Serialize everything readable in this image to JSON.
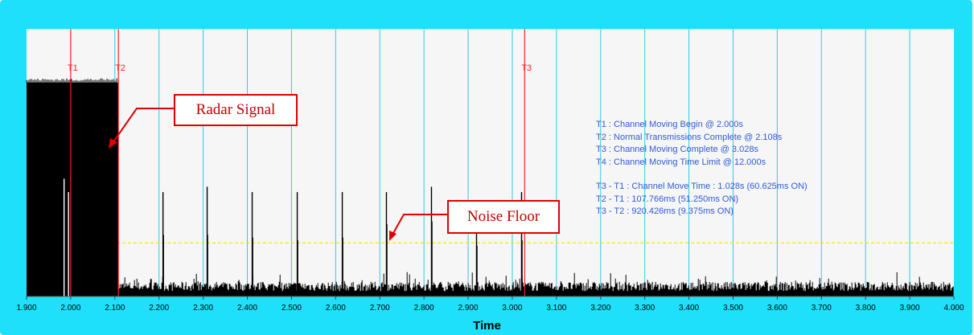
{
  "chart_data": {
    "type": "line",
    "xlabel": "Time",
    "ylabel": "",
    "xlim": [
      1.9,
      4.0
    ],
    "x_ticks": [
      "1.900",
      "2.000",
      "2.100",
      "2.200",
      "2.300",
      "2.400",
      "2.500",
      "2.600",
      "2.700",
      "2.800",
      "2.900",
      "3.000",
      "3.100",
      "3.200",
      "3.300",
      "3.400",
      "3.500",
      "3.600",
      "3.700",
      "3.800",
      "3.900",
      "4.000"
    ],
    "grid_lines_x": [
      2.0,
      2.1,
      2.2,
      2.3,
      2.4,
      2.5,
      2.6,
      2.7,
      2.8,
      2.9,
      3.0,
      3.1,
      3.2,
      3.3,
      3.4,
      3.5,
      3.6,
      3.7,
      3.8,
      3.9
    ],
    "markers": [
      {
        "label": "T1",
        "x": 2.0
      },
      {
        "label": "T2",
        "x": 2.108
      },
      {
        "label": "T3",
        "x": 3.028
      }
    ],
    "threshold": {
      "relative_level": 0.2
    },
    "radar_burst": {
      "x_start": 1.9,
      "x_end": 2.108,
      "relative_level": 0.8
    },
    "spikes": [
      {
        "x": 1.985,
        "relative_level": 0.44
      },
      {
        "x": 1.995,
        "relative_level": 0.39
      },
      {
        "x": 2.209,
        "relative_level": 0.39
      },
      {
        "x": 2.21,
        "relative_level": 0.23
      },
      {
        "x": 2.309,
        "relative_level": 0.41
      },
      {
        "x": 2.31,
        "relative_level": 0.23
      },
      {
        "x": 2.411,
        "relative_level": 0.39
      },
      {
        "x": 2.412,
        "relative_level": 0.22
      },
      {
        "x": 2.513,
        "relative_level": 0.39
      },
      {
        "x": 2.514,
        "relative_level": 0.21
      },
      {
        "x": 2.615,
        "relative_level": 0.39
      },
      {
        "x": 2.616,
        "relative_level": 0.22
      },
      {
        "x": 2.715,
        "relative_level": 0.39
      },
      {
        "x": 2.716,
        "relative_level": 0.27
      },
      {
        "x": 2.817,
        "relative_level": 0.41
      },
      {
        "x": 2.818,
        "relative_level": 0.28
      },
      {
        "x": 2.919,
        "relative_level": 0.27
      },
      {
        "x": 2.92,
        "relative_level": 0.19
      },
      {
        "x": 3.021,
        "relative_level": 0.39
      },
      {
        "x": 3.022,
        "relative_level": 0.21
      }
    ],
    "colors": {
      "frame": "#1fe0fb",
      "plot_background": "#f6f6f6",
      "grid": "#33c8e8",
      "marker_lines": "#ff2020",
      "threshold": "#ffe100",
      "signal": "#000000",
      "annotation_text": "#2f5bd8"
    }
  },
  "annotations": {
    "t1": "T1 : Channel Moving Begin @ 2.000s",
    "t2": "T2 : Normal Transmissions Complete @ 2.108s",
    "t3": "T3 : Channel Moving Complete @ 3.028s",
    "t4": "T4 : Channel Moving Time Limit @ 12.000s",
    "d31": "T3 - T1 : Channel Move Time : 1.028s (60.625ms ON)",
    "d21": "T2 - T1 : 107.766ms (51.250ms ON)",
    "d32": "T3 - T2 : 920.426ms (9.375ms ON)"
  },
  "callouts": {
    "radar": "Radar Signal",
    "noise": "Noise Floor"
  }
}
